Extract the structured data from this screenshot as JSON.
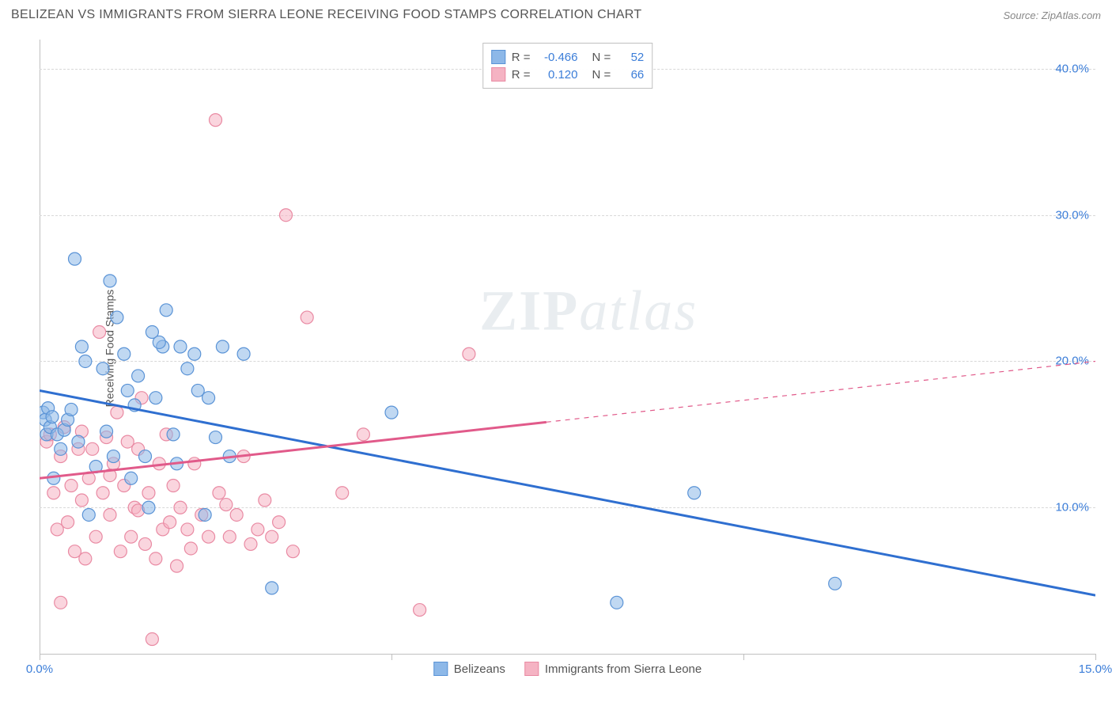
{
  "header": {
    "title": "BELIZEAN VS IMMIGRANTS FROM SIERRA LEONE RECEIVING FOOD STAMPS CORRELATION CHART",
    "source": "Source: ZipAtlas.com"
  },
  "watermark": {
    "bold": "ZIP",
    "rest": "atlas"
  },
  "chart": {
    "type": "scatter",
    "background_color": "#ffffff",
    "grid_color": "#d8d8d8",
    "axis_color": "#c0c0c0",
    "ylabel": "Receiving Food Stamps",
    "ylabel_color": "#555555",
    "label_fontsize": 14,
    "xlim": [
      0,
      15
    ],
    "ylim": [
      0,
      42
    ],
    "xticks": [
      {
        "value": 0,
        "label": "0.0%"
      },
      {
        "value": 5,
        "label": ""
      },
      {
        "value": 10,
        "label": ""
      },
      {
        "value": 15,
        "label": "15.0%"
      }
    ],
    "yticks": [
      {
        "value": 10,
        "label": "10.0%"
      },
      {
        "value": 20,
        "label": "20.0%"
      },
      {
        "value": 30,
        "label": "30.0%"
      },
      {
        "value": 40,
        "label": "40.0%"
      }
    ],
    "tick_label_color": "#3b7dd8",
    "tick_fontsize": 15,
    "marker_radius": 8,
    "marker_opacity": 0.55,
    "series": [
      {
        "name": "Belizeans",
        "fill_color": "#8db8e8",
        "stroke_color": "#5a93d6",
        "line_color": "#2f6fd0",
        "line_width": 3,
        "trend": {
          "x1": 0,
          "y1": 18.0,
          "x2": 15,
          "y2": 4.0
        },
        "extrapolate_from": 15,
        "points": [
          [
            0.05,
            16.5
          ],
          [
            0.08,
            16.0
          ],
          [
            0.1,
            15.0
          ],
          [
            0.12,
            16.8
          ],
          [
            0.15,
            15.5
          ],
          [
            0.18,
            16.2
          ],
          [
            0.2,
            12.0
          ],
          [
            0.25,
            15.0
          ],
          [
            0.3,
            14.0
          ],
          [
            0.35,
            15.3
          ],
          [
            0.4,
            16.0
          ],
          [
            0.5,
            27.0
          ],
          [
            0.55,
            14.5
          ],
          [
            0.6,
            21.0
          ],
          [
            0.65,
            20.0
          ],
          [
            0.7,
            9.5
          ],
          [
            0.8,
            12.8
          ],
          [
            0.9,
            19.5
          ],
          [
            0.95,
            15.2
          ],
          [
            1.0,
            25.5
          ],
          [
            1.05,
            13.5
          ],
          [
            1.1,
            23.0
          ],
          [
            1.2,
            20.5
          ],
          [
            1.25,
            18.0
          ],
          [
            1.3,
            12.0
          ],
          [
            1.35,
            17.0
          ],
          [
            1.4,
            19.0
          ],
          [
            1.5,
            13.5
          ],
          [
            1.55,
            10.0
          ],
          [
            1.6,
            22.0
          ],
          [
            1.65,
            17.5
          ],
          [
            1.75,
            21.0
          ],
          [
            1.8,
            23.5
          ],
          [
            1.9,
            15.0
          ],
          [
            1.95,
            13.0
          ],
          [
            2.0,
            21.0
          ],
          [
            2.1,
            19.5
          ],
          [
            2.2,
            20.5
          ],
          [
            2.25,
            18.0
          ],
          [
            2.35,
            9.5
          ],
          [
            2.4,
            17.5
          ],
          [
            2.6,
            21.0
          ],
          [
            2.7,
            13.5
          ],
          [
            2.9,
            20.5
          ],
          [
            3.3,
            4.5
          ],
          [
            5.0,
            16.5
          ],
          [
            8.2,
            3.5
          ],
          [
            9.3,
            11.0
          ],
          [
            11.3,
            4.8
          ],
          [
            0.45,
            16.7
          ],
          [
            1.7,
            21.3
          ],
          [
            2.5,
            14.8
          ]
        ]
      },
      {
        "name": "Immigrants from Sierra Leone",
        "fill_color": "#f5b3c3",
        "stroke_color": "#e98aa3",
        "line_color": "#e15a8a",
        "line_width": 3,
        "trend": {
          "x1": 0,
          "y1": 12.0,
          "x2": 15,
          "y2": 20.0
        },
        "extrapolate_from": 7.2,
        "points": [
          [
            0.1,
            14.5
          ],
          [
            0.15,
            15.0
          ],
          [
            0.2,
            11.0
          ],
          [
            0.25,
            8.5
          ],
          [
            0.3,
            13.5
          ],
          [
            0.35,
            15.5
          ],
          [
            0.4,
            9.0
          ],
          [
            0.45,
            11.5
          ],
          [
            0.5,
            7.0
          ],
          [
            0.55,
            14.0
          ],
          [
            0.6,
            10.5
          ],
          [
            0.65,
            6.5
          ],
          [
            0.7,
            12.0
          ],
          [
            0.75,
            14.0
          ],
          [
            0.8,
            8.0
          ],
          [
            0.85,
            22.0
          ],
          [
            0.9,
            11.0
          ],
          [
            0.95,
            14.8
          ],
          [
            1.0,
            9.5
          ],
          [
            1.05,
            13.0
          ],
          [
            1.1,
            16.5
          ],
          [
            1.15,
            7.0
          ],
          [
            1.2,
            11.5
          ],
          [
            1.25,
            14.5
          ],
          [
            1.3,
            8.0
          ],
          [
            1.35,
            10.0
          ],
          [
            1.4,
            14.0
          ],
          [
            1.45,
            17.5
          ],
          [
            1.5,
            7.5
          ],
          [
            1.55,
            11.0
          ],
          [
            1.6,
            1.0
          ],
          [
            1.65,
            6.5
          ],
          [
            1.7,
            13.0
          ],
          [
            1.75,
            8.5
          ],
          [
            1.8,
            15.0
          ],
          [
            1.85,
            9.0
          ],
          [
            1.9,
            11.5
          ],
          [
            1.95,
            6.0
          ],
          [
            2.0,
            10.0
          ],
          [
            2.1,
            8.5
          ],
          [
            2.2,
            13.0
          ],
          [
            2.3,
            9.5
          ],
          [
            2.4,
            8.0
          ],
          [
            2.5,
            36.5
          ],
          [
            2.55,
            11.0
          ],
          [
            2.7,
            8.0
          ],
          [
            2.8,
            9.5
          ],
          [
            2.9,
            13.5
          ],
          [
            3.0,
            7.5
          ],
          [
            3.1,
            8.5
          ],
          [
            3.2,
            10.5
          ],
          [
            3.3,
            8.0
          ],
          [
            3.4,
            9.0
          ],
          [
            3.5,
            30.0
          ],
          [
            3.6,
            7.0
          ],
          [
            3.8,
            23.0
          ],
          [
            4.3,
            11.0
          ],
          [
            4.6,
            15.0
          ],
          [
            5.4,
            3.0
          ],
          [
            6.1,
            20.5
          ],
          [
            0.3,
            3.5
          ],
          [
            0.6,
            15.2
          ],
          [
            1.0,
            12.2
          ],
          [
            1.4,
            9.8
          ],
          [
            2.15,
            7.2
          ],
          [
            2.65,
            10.2
          ]
        ]
      }
    ],
    "stats_legend": {
      "rows": [
        {
          "swatch_fill": "#8db8e8",
          "swatch_stroke": "#5a93d6",
          "R_label": "R =",
          "R": "-0.466",
          "N_label": "N =",
          "N": "52"
        },
        {
          "swatch_fill": "#f5b3c3",
          "swatch_stroke": "#e98aa3",
          "R_label": "R =",
          "R": "0.120",
          "N_label": "N =",
          "N": "66"
        }
      ]
    },
    "series_legend": [
      {
        "swatch_fill": "#8db8e8",
        "swatch_stroke": "#5a93d6",
        "label": "Belizeans"
      },
      {
        "swatch_fill": "#f5b3c3",
        "swatch_stroke": "#e98aa3",
        "label": "Immigrants from Sierra Leone"
      }
    ]
  }
}
